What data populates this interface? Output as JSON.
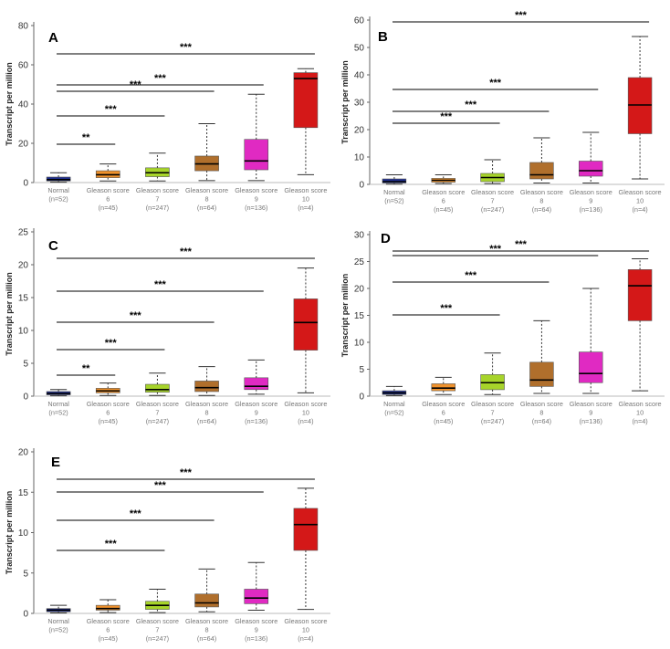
{
  "figure": {
    "panels": [
      {
        "letter": "A",
        "ylabel": "Transcript per million"
      },
      {
        "letter": "B",
        "ylabel": "Transcript per million"
      },
      {
        "letter": "C",
        "ylabel": "Transcript per million"
      },
      {
        "letter": "D",
        "ylabel": "Transcript per million"
      },
      {
        "letter": "E",
        "ylabel": "Transcript per million"
      }
    ]
  },
  "group_labels": [
    {
      "lines": [
        "Normal",
        "(n=52)"
      ]
    },
    {
      "lines": [
        "Gleason score",
        "6",
        "(n=45)"
      ]
    },
    {
      "lines": [
        "Gleason score",
        "7",
        "(n=247)"
      ]
    },
    {
      "lines": [
        "Gleason score",
        "8",
        "(n=64)"
      ]
    },
    {
      "lines": [
        "Gleason score",
        "9",
        "(n=136)"
      ]
    },
    {
      "lines": [
        "Gleason score",
        "10",
        "(n=4)"
      ]
    }
  ],
  "colors": {
    "Normal": "#1f2f8f",
    "Gleason score 6": "#f0922c",
    "Gleason score 7": "#a7d42a",
    "Gleason score 8": "#b06f2c",
    "Gleason score 9": "#e02ac2",
    "Gleason score 10": "#d41818"
  },
  "chart_data": [
    {
      "type": "box",
      "panel": "A",
      "ylabel": "Transcript per million",
      "ylim": [
        0,
        80
      ],
      "yticks": [
        0,
        20,
        40,
        60,
        80
      ],
      "categories": [
        "Normal",
        "Gleason score 6",
        "Gleason score 7",
        "Gleason score 8",
        "Gleason score 9",
        "Gleason score 10"
      ],
      "boxes": [
        {
          "min": 0.2,
          "q1": 0.8,
          "median": 1.5,
          "q3": 2.8,
          "max": 5
        },
        {
          "min": 0.8,
          "q1": 2.5,
          "median": 4,
          "q3": 6,
          "max": 9.5
        },
        {
          "min": 0.8,
          "q1": 3,
          "median": 5,
          "q3": 7.5,
          "max": 15
        },
        {
          "min": 1,
          "q1": 6,
          "median": 9.5,
          "q3": 13.5,
          "max": 30
        },
        {
          "min": 1,
          "q1": 6.5,
          "median": 11,
          "q3": 22,
          "max": 45
        },
        {
          "min": 4,
          "q1": 28,
          "median": 53,
          "q3": 56,
          "max": 58
        }
      ],
      "significance": [
        {
          "compare": [
            "Normal",
            "Gleason score 6"
          ],
          "label": "**"
        },
        {
          "compare": [
            "Normal",
            "Gleason score 7"
          ],
          "label": "***"
        },
        {
          "compare": [
            "Normal",
            "Gleason score 8"
          ],
          "label": "***"
        },
        {
          "compare": [
            "Normal",
            "Gleason score 9"
          ],
          "label": "***"
        },
        {
          "compare": [
            "Normal",
            "Gleason score 10"
          ],
          "label": "***"
        }
      ]
    },
    {
      "type": "box",
      "panel": "B",
      "ylabel": "Transcript per million",
      "ylim": [
        0,
        60
      ],
      "yticks": [
        0,
        10,
        20,
        30,
        40,
        50,
        60
      ],
      "categories": [
        "Normal",
        "Gleason score 6",
        "Gleason score 7",
        "Gleason score 8",
        "Gleason score 9",
        "Gleason score 10"
      ],
      "boxes": [
        {
          "min": 0.1,
          "q1": 0.5,
          "median": 1,
          "q3": 2,
          "max": 3.5
        },
        {
          "min": 0.3,
          "q1": 0.8,
          "median": 1.5,
          "q3": 2.2,
          "max": 3.5
        },
        {
          "min": 0.3,
          "q1": 1,
          "median": 2.5,
          "q3": 4,
          "max": 9
        },
        {
          "min": 0.5,
          "q1": 2,
          "median": 3.5,
          "q3": 8,
          "max": 17
        },
        {
          "min": 0.5,
          "q1": 3,
          "median": 5,
          "q3": 8.5,
          "max": 19
        },
        {
          "min": 2,
          "q1": 18.5,
          "median": 29,
          "q3": 39,
          "max": 54
        }
      ],
      "significance": [
        {
          "compare": [
            "Normal",
            "Gleason score 7"
          ],
          "label": "***"
        },
        {
          "compare": [
            "Normal",
            "Gleason score 8"
          ],
          "label": "***"
        },
        {
          "compare": [
            "Normal",
            "Gleason score 9"
          ],
          "label": "***"
        },
        {
          "compare": [
            "Normal",
            "Gleason score 10"
          ],
          "label": "***"
        }
      ]
    },
    {
      "type": "box",
      "panel": "C",
      "ylabel": "Transcript per million",
      "ylim": [
        0,
        25
      ],
      "yticks": [
        0,
        5,
        10,
        15,
        20,
        25
      ],
      "categories": [
        "Normal",
        "Gleason score 6",
        "Gleason score 7",
        "Gleason score 8",
        "Gleason score 9",
        "Gleason score 10"
      ],
      "boxes": [
        {
          "min": 0.05,
          "q1": 0.2,
          "median": 0.4,
          "q3": 0.7,
          "max": 1
        },
        {
          "min": 0.1,
          "q1": 0.5,
          "median": 0.8,
          "q3": 1.2,
          "max": 2
        },
        {
          "min": 0.1,
          "q1": 0.6,
          "median": 1,
          "q3": 1.8,
          "max": 3.5
        },
        {
          "min": 0.1,
          "q1": 0.7,
          "median": 1.3,
          "q3": 2.3,
          "max": 4.5
        },
        {
          "min": 0.3,
          "q1": 1,
          "median": 1.5,
          "q3": 2.8,
          "max": 5.5
        },
        {
          "min": 0.5,
          "q1": 7,
          "median": 11.2,
          "q3": 14.8,
          "max": 19.5
        }
      ],
      "significance": [
        {
          "compare": [
            "Normal",
            "Gleason score 6"
          ],
          "label": "**"
        },
        {
          "compare": [
            "Normal",
            "Gleason score 7"
          ],
          "label": "***"
        },
        {
          "compare": [
            "Normal",
            "Gleason score 8"
          ],
          "label": "***"
        },
        {
          "compare": [
            "Normal",
            "Gleason score 9"
          ],
          "label": "***"
        },
        {
          "compare": [
            "Normal",
            "Gleason score 10"
          ],
          "label": "***"
        }
      ]
    },
    {
      "type": "box",
      "panel": "D",
      "ylabel": "Transcript per million",
      "ylim": [
        0,
        30
      ],
      "yticks": [
        0,
        5,
        10,
        15,
        20,
        25,
        30
      ],
      "categories": [
        "Normal",
        "Gleason score 6",
        "Gleason score 7",
        "Gleason score 8",
        "Gleason score 9",
        "Gleason score 10"
      ],
      "boxes": [
        {
          "min": 0.1,
          "q1": 0.3,
          "median": 0.6,
          "q3": 1,
          "max": 1.8
        },
        {
          "min": 0.3,
          "q1": 1,
          "median": 1.5,
          "q3": 2.3,
          "max": 3.5
        },
        {
          "min": 0.3,
          "q1": 1.2,
          "median": 2.5,
          "q3": 4,
          "max": 8
        },
        {
          "min": 0.5,
          "q1": 1.8,
          "median": 3,
          "q3": 6.3,
          "max": 14
        },
        {
          "min": 0.5,
          "q1": 2.5,
          "median": 4.2,
          "q3": 8.2,
          "max": 20
        },
        {
          "min": 1,
          "q1": 14,
          "median": 20.5,
          "q3": 23.5,
          "max": 25.5
        }
      ],
      "significance": [
        {
          "compare": [
            "Normal",
            "Gleason score 7"
          ],
          "label": "***"
        },
        {
          "compare": [
            "Normal",
            "Gleason score 8"
          ],
          "label": "***"
        },
        {
          "compare": [
            "Normal",
            "Gleason score 9"
          ],
          "label": "***"
        },
        {
          "compare": [
            "Normal",
            "Gleason score 10"
          ],
          "label": "***"
        }
      ]
    },
    {
      "type": "box",
      "panel": "E",
      "ylabel": "Transcript per million",
      "ylim": [
        0,
        20
      ],
      "yticks": [
        0,
        5,
        10,
        15,
        20
      ],
      "categories": [
        "Normal",
        "Gleason score 6",
        "Gleason score 7",
        "Gleason score 8",
        "Gleason score 9",
        "Gleason score 10"
      ],
      "boxes": [
        {
          "min": 0.05,
          "q1": 0.2,
          "median": 0.4,
          "q3": 0.6,
          "max": 1
        },
        {
          "min": 0.1,
          "q1": 0.4,
          "median": 0.6,
          "q3": 1,
          "max": 1.7
        },
        {
          "min": 0.1,
          "q1": 0.5,
          "median": 1,
          "q3": 1.5,
          "max": 3
        },
        {
          "min": 0.2,
          "q1": 0.8,
          "median": 1.3,
          "q3": 2.4,
          "max": 5.5
        },
        {
          "min": 0.4,
          "q1": 1.2,
          "median": 1.9,
          "q3": 3,
          "max": 6.3
        },
        {
          "min": 0.5,
          "q1": 7.8,
          "median": 11,
          "q3": 13,
          "max": 15.5
        }
      ],
      "significance": [
        {
          "compare": [
            "Normal",
            "Gleason score 7"
          ],
          "label": "***"
        },
        {
          "compare": [
            "Normal",
            "Gleason score 8"
          ],
          "label": "***"
        },
        {
          "compare": [
            "Normal",
            "Gleason score 9"
          ],
          "label": "***"
        },
        {
          "compare": [
            "Normal",
            "Gleason score 10"
          ],
          "label": "***"
        }
      ]
    }
  ]
}
